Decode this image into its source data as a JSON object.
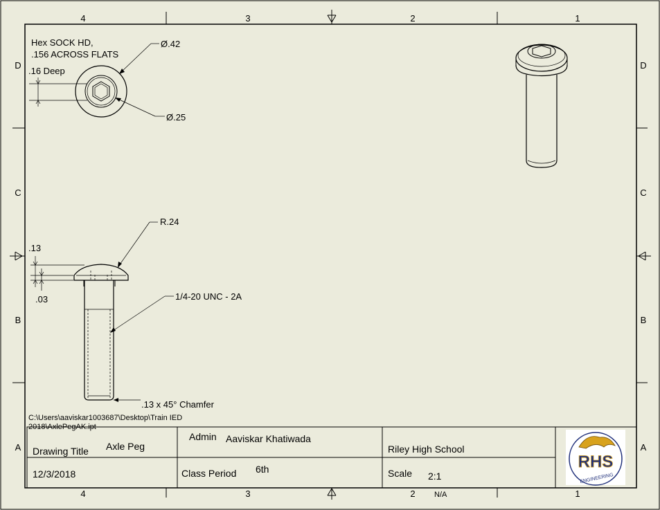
{
  "zones": {
    "cols": [
      "4",
      "3",
      "2",
      "1"
    ],
    "rows": [
      "D",
      "C",
      "B",
      "A"
    ]
  },
  "notes": {
    "hex_line1": "Hex SOCK HD,",
    "hex_line2": ".156 ACROSS FLATS",
    "deep": ".16 Deep",
    "dia_outer": "Ø.42",
    "dia_inner": "Ø.25",
    "radius": "R.24",
    "dim_13": ".13",
    "dim_03": ".03",
    "thread": "1/4-20 UNC - 2A",
    "chamfer": ".13 x 45° Chamfer"
  },
  "file_path": {
    "line1": "C:\\Users\\aaviskar1003687\\Desktop\\Train IED",
    "line2": "2018\\AxlePegAK.ipt"
  },
  "title_block": {
    "drawing_title_label": "Drawing Title",
    "drawing_title_value": "Axle Peg",
    "date": "12/3/2018",
    "admin_label": "Admin",
    "admin_value": "Aaviskar Khatiwada",
    "class_period_label": "Class Period",
    "class_period_value": "6th",
    "school": "Riley High School",
    "scale_label": "Scale",
    "scale_value": "2:1",
    "sheet_note": "N/A"
  },
  "logo": {
    "text": "RHS",
    "subtext": "ENGINEERING"
  },
  "colors": {
    "sheet": "#ebebdc",
    "line": "#000000",
    "logo_blue": "#1f2f7a",
    "logo_gold": "#d8a21c"
  }
}
